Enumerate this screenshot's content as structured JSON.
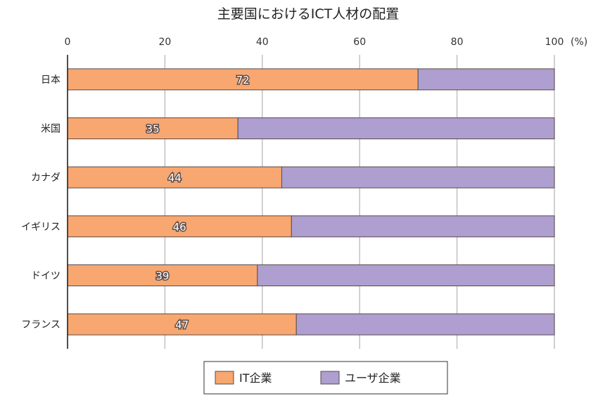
{
  "chart_data": {
    "type": "bar",
    "orientation": "horizontal",
    "stacked": true,
    "title": "主要国におけるICT人材の配置",
    "unit_label": "(%)",
    "xlim": [
      0,
      100
    ],
    "x_ticks": [
      "0",
      "20",
      "40",
      "60",
      "80",
      "100"
    ],
    "grid": true,
    "legend_position": "bottom",
    "categories": [
      "日本",
      "米国",
      "カナダ",
      "イギリス",
      "ドイツ",
      "フランス"
    ],
    "series": [
      {
        "name": "IT企業",
        "values": [
          72,
          35,
          44,
          46,
          39,
          47
        ],
        "color": "#f7a76f",
        "show_labels": true
      },
      {
        "name": "ユーザ企業",
        "values": [
          28,
          65,
          56,
          54,
          61,
          53
        ],
        "color": "#ae9fd0",
        "show_labels": false
      }
    ]
  }
}
